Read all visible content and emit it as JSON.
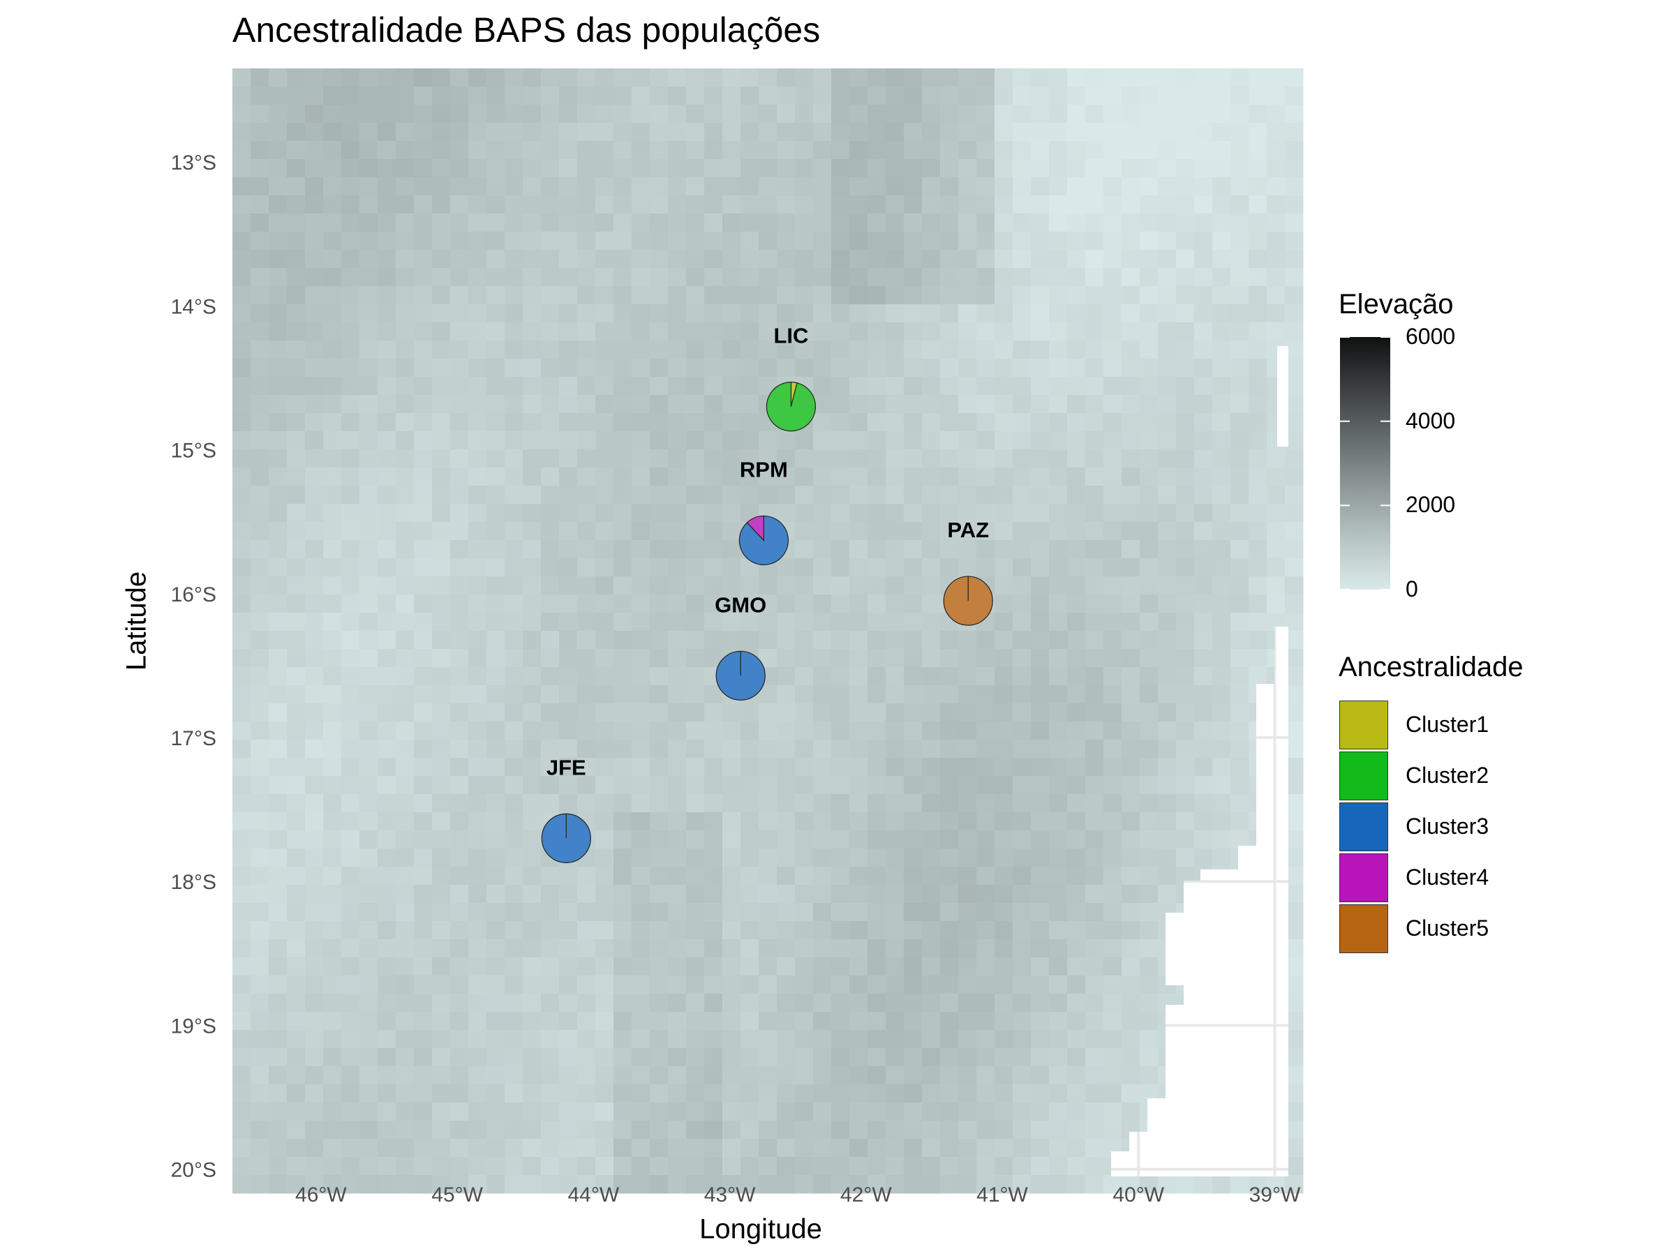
{
  "title": "Ancestralidade BAPS das populações",
  "colors": {
    "background": "#ffffff",
    "grid": "#e8e8e8",
    "land_low": "#d9e8e8",
    "land_mid": "#bcc9c9",
    "land_high": "#9aa6a6",
    "pie_stroke": "#222222"
  },
  "chart_data": {
    "type": "map",
    "xlabel": "Longitude",
    "ylabel": "Latitude",
    "xlim": [
      -46.65,
      -38.9
    ],
    "ylim": [
      -20.05,
      -12.35
    ],
    "x_ticks": [
      {
        "value": -46,
        "label": "46°W"
      },
      {
        "value": -45,
        "label": "45°W"
      },
      {
        "value": -44,
        "label": "44°W"
      },
      {
        "value": -43,
        "label": "43°W"
      },
      {
        "value": -42,
        "label": "42°W"
      },
      {
        "value": -41,
        "label": "41°W"
      },
      {
        "value": -40,
        "label": "40°W"
      },
      {
        "value": -39,
        "label": "39°W"
      }
    ],
    "y_ticks": [
      {
        "value": -13,
        "label": "13°S"
      },
      {
        "value": -14,
        "label": "14°S"
      },
      {
        "value": -15,
        "label": "15°S"
      },
      {
        "value": -16,
        "label": "16°S"
      },
      {
        "value": -17,
        "label": "17°S"
      },
      {
        "value": -18,
        "label": "18°S"
      },
      {
        "value": -19,
        "label": "19°S"
      },
      {
        "value": -20,
        "label": "20°S"
      }
    ],
    "grid": true,
    "elevation_legend": {
      "title": "Elevação",
      "range": [
        0,
        6000
      ],
      "ticks": [
        "6000",
        "4000",
        "2000",
        "0"
      ],
      "tick_values": [
        6000,
        4000,
        2000,
        0
      ]
    },
    "ancestry_legend": {
      "title": "Ancestralidade",
      "clusters": [
        {
          "name": "Cluster1",
          "color": "#b8b914"
        },
        {
          "name": "Cluster2",
          "color": "#12bb1a"
        },
        {
          "name": "Cluster3",
          "color": "#1866bc"
        },
        {
          "name": "Cluster4",
          "color": "#b814b9"
        },
        {
          "name": "Cluster5",
          "color": "#b66312"
        }
      ]
    },
    "populations": [
      {
        "name": "LIC",
        "lon": -42.55,
        "lat": -14.7,
        "proportions": [
          0.04,
          0.96,
          0,
          0,
          0
        ]
      },
      {
        "name": "RPM",
        "lon": -42.75,
        "lat": -15.63,
        "proportions": [
          0,
          0,
          0.88,
          0.12,
          0
        ]
      },
      {
        "name": "PAZ",
        "lon": -41.25,
        "lat": -16.05,
        "proportions": [
          0,
          0,
          0,
          0,
          1
        ]
      },
      {
        "name": "GMO",
        "lon": -42.92,
        "lat": -16.57,
        "proportions": [
          0,
          0,
          1,
          0,
          0
        ]
      },
      {
        "name": "JFE",
        "lon": -44.2,
        "lat": -17.7,
        "proportions": [
          0,
          0,
          1,
          0,
          0
        ]
      }
    ]
  }
}
